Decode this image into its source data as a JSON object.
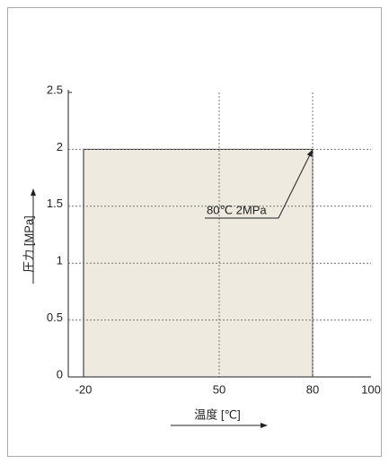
{
  "chart_data": {
    "type": "region",
    "ylabel": "圧力 [MPa]",
    "xlabel": "温度 [℃]",
    "xlim": [
      -20,
      100
    ],
    "xticks": [
      -20,
      50,
      80,
      100
    ],
    "ylim": [
      0,
      2.5
    ],
    "yticks": [
      0,
      0.5,
      1,
      1.5,
      2,
      2.5
    ],
    "region": {
      "x": [
        -20,
        80
      ],
      "y": [
        0,
        2
      ],
      "color": "#efeadf"
    },
    "annotation": {
      "text": "80℃ 2MPa",
      "x": 80,
      "y": 2
    },
    "grid": true
  }
}
